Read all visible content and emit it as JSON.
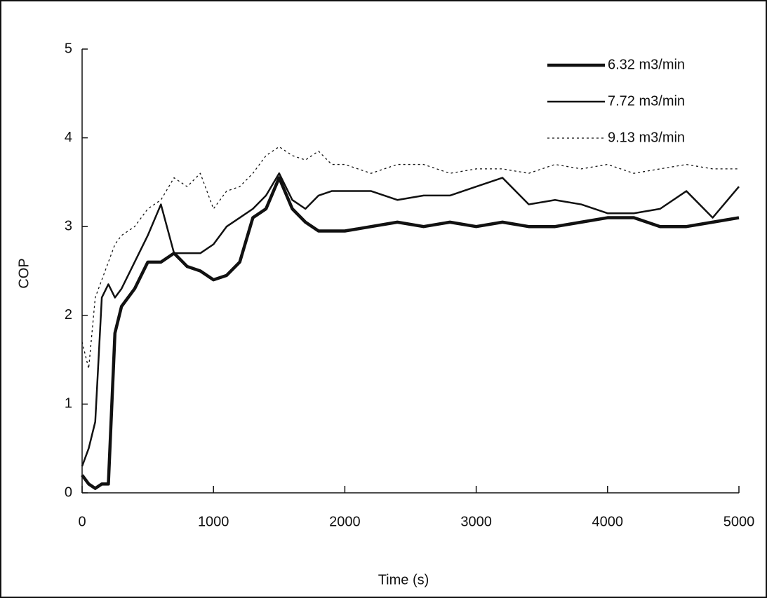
{
  "chart_data": {
    "type": "line",
    "x_label": "Time (s)",
    "y_label": "COP",
    "x": [
      0,
      50,
      100,
      150,
      200,
      250,
      300,
      400,
      500,
      600,
      700,
      800,
      900,
      1000,
      1100,
      1200,
      1300,
      1400,
      1500,
      1600,
      1700,
      1800,
      1900,
      2000,
      2200,
      2400,
      2600,
      2800,
      3000,
      3200,
      3400,
      3600,
      3800,
      4000,
      4200,
      4400,
      4600,
      4800,
      5000
    ],
    "series": [
      {
        "name": "6.32 m3/min",
        "color": "#111111",
        "line_width": 4.5,
        "dash": "none",
        "values": [
          0.2,
          0.1,
          0.05,
          0.1,
          0.1,
          1.8,
          2.1,
          2.3,
          2.6,
          2.6,
          2.7,
          2.55,
          2.5,
          2.4,
          2.45,
          2.6,
          3.1,
          3.2,
          3.55,
          3.2,
          3.05,
          2.95,
          2.95,
          2.95,
          3.0,
          3.05,
          3.0,
          3.05,
          3.0,
          3.05,
          3.0,
          3.0,
          3.05,
          3.1,
          3.1,
          3.0,
          3.0,
          3.05,
          3.1
        ]
      },
      {
        "name": "7.72 m3/min",
        "color": "#111111",
        "line_width": 2.5,
        "dash": "none",
        "values": [
          0.3,
          0.5,
          0.8,
          2.2,
          2.35,
          2.2,
          2.3,
          2.6,
          2.9,
          3.25,
          2.7,
          2.7,
          2.7,
          2.8,
          3.0,
          3.1,
          3.2,
          3.35,
          3.6,
          3.3,
          3.2,
          3.35,
          3.4,
          3.4,
          3.4,
          3.3,
          3.35,
          3.35,
          3.45,
          3.55,
          3.25,
          3.3,
          3.25,
          3.15,
          3.15,
          3.2,
          3.4,
          3.1,
          3.45
        ]
      },
      {
        "name": "9.13 m3/min",
        "color": "#111111",
        "line_width": 1.3,
        "dash": "3 4",
        "values": [
          1.7,
          1.4,
          2.2,
          2.4,
          2.6,
          2.8,
          2.9,
          3.0,
          3.2,
          3.3,
          3.55,
          3.45,
          3.6,
          3.2,
          3.4,
          3.45,
          3.6,
          3.8,
          3.9,
          3.8,
          3.75,
          3.85,
          3.7,
          3.7,
          3.6,
          3.7,
          3.7,
          3.6,
          3.65,
          3.65,
          3.6,
          3.7,
          3.65,
          3.7,
          3.6,
          3.65,
          3.7,
          3.65,
          3.65
        ]
      }
    ],
    "xlim": [
      0,
      5000
    ],
    "xticks": [
      0,
      1000,
      2000,
      3000,
      4000,
      5000
    ],
    "ylim": [
      0,
      5
    ],
    "yticks": [
      0,
      1,
      2,
      3,
      4,
      5
    ],
    "grid": false,
    "legend_position": "upper-right"
  }
}
